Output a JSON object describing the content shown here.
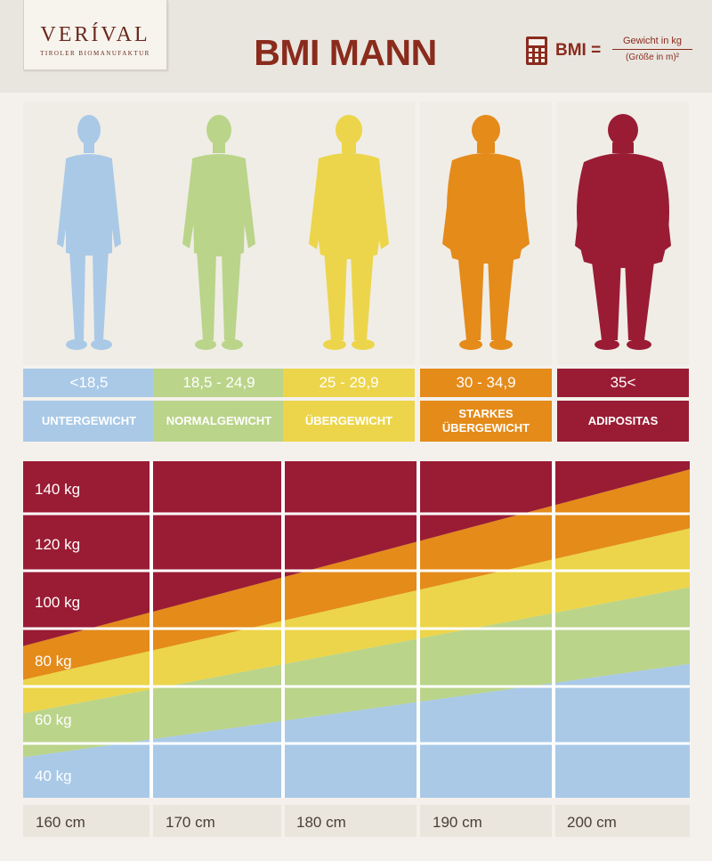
{
  "header": {
    "logo_brand": "VERÍVAL",
    "logo_sub": "TIROLER BIOMANUFAKTUR",
    "title": "BMI MANN",
    "formula_lhs": "BMI =",
    "formula_num": "Gewicht in kg",
    "formula_den": "(Größe in m)²",
    "icon": "calculator-icon"
  },
  "categories": [
    {
      "range": "<18,5",
      "label": "UNTERGEWICHT",
      "color": "#a9c9e7"
    },
    {
      "range": "18,5 - 24,9",
      "label": "NORMALGEWICHT",
      "color": "#bad48a"
    },
    {
      "range": "25 - 29,9",
      "label": "ÜBERGEWICHT",
      "color": "#ecd54a"
    },
    {
      "range": "30 - 34,9",
      "label": "STARKES ÜBERGEWICHT",
      "color": "#e48b1a"
    },
    {
      "range": "35<",
      "label": "ADIPOSITAS",
      "color": "#9a1c34"
    }
  ],
  "chart_data": {
    "type": "area",
    "x_ticks": [
      "160 cm",
      "170 cm",
      "180 cm",
      "190 cm",
      "200 cm"
    ],
    "y_ticks": [
      "140 kg",
      "120 kg",
      "100 kg",
      "80 kg",
      "60 kg",
      "40 kg"
    ],
    "xlim_cm": [
      155,
      205
    ],
    "ylim_kg": [
      30,
      150
    ],
    "bmi_thresholds": [
      18.5,
      25,
      30,
      35
    ],
    "bands": [
      {
        "name": "UNTERGEWICHT",
        "color": "#a9c9e7"
      },
      {
        "name": "NORMALGEWICHT",
        "color": "#bad48a"
      },
      {
        "name": "ÜBERGEWICHT",
        "color": "#ecd54a"
      },
      {
        "name": "STARKES ÜBERGEWICHT",
        "color": "#e48b1a"
      },
      {
        "name": "ADIPOSITAS",
        "color": "#9a1c34"
      }
    ],
    "grid": true
  }
}
